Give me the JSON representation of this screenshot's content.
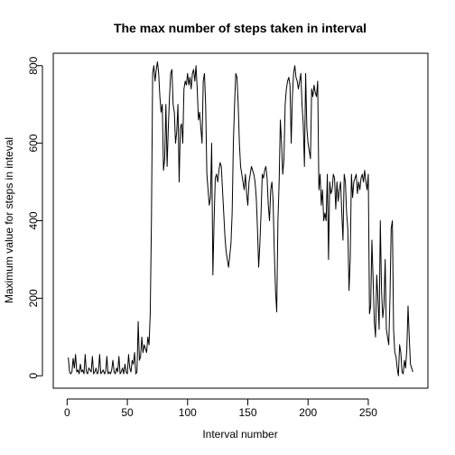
{
  "chart_data": {
    "type": "line",
    "title": "The max number of steps taken in interval",
    "xlabel": "Interval number",
    "ylabel": "Maximum value for steps in inteval",
    "xlim": [
      -11.5,
      299.5
    ],
    "ylim": [
      -32,
      832
    ],
    "xticks": [
      0,
      50,
      100,
      150,
      200,
      250
    ],
    "yticks": [
      0,
      200,
      400,
      600,
      800
    ],
    "grid": false,
    "legend": "none",
    "line_color": "#000000",
    "series": [
      {
        "values": [
          47,
          10,
          5,
          10,
          45,
          20,
          55,
          10,
          15,
          5,
          30,
          10,
          15,
          5,
          55,
          10,
          5,
          20,
          15,
          10,
          50,
          5,
          10,
          20,
          5,
          10,
          55,
          5,
          10,
          15,
          5,
          10,
          50,
          5,
          10,
          5,
          15,
          40,
          10,
          5,
          20,
          10,
          50,
          5,
          10,
          20,
          5,
          30,
          10,
          5,
          55,
          20,
          10,
          40,
          30,
          60,
          5,
          10,
          140,
          40,
          50,
          100,
          60,
          80,
          70,
          60,
          100,
          80,
          160,
          400,
          780,
          800,
          760,
          790,
          810,
          780,
          720,
          680,
          700,
          530,
          560,
          700,
          540,
          640,
          720,
          780,
          790,
          700,
          680,
          600,
          630,
          700,
          500,
          640,
          650,
          600,
          740,
          760,
          750,
          780,
          750,
          770,
          740,
          780,
          790,
          760,
          800,
          740,
          660,
          680,
          640,
          600,
          760,
          780,
          700,
          520,
          480,
          440,
          460,
          600,
          260,
          400,
          510,
          520,
          500,
          530,
          550,
          540,
          480,
          420,
          360,
          320,
          300,
          280,
          310,
          340,
          420,
          600,
          700,
          780,
          770,
          700,
          600,
          540,
          520,
          500,
          480,
          520,
          470,
          440,
          500,
          520,
          540,
          530,
          520,
          500,
          460,
          380,
          280,
          340,
          420,
          520,
          510,
          530,
          540,
          510,
          440,
          400,
          480,
          500,
          450,
          320,
          220,
          165,
          400,
          500,
          660,
          600,
          520,
          560,
          700,
          740,
          760,
          770,
          750,
          600,
          720,
          780,
          800,
          770,
          760,
          740,
          760,
          780,
          700,
          650,
          540,
          780,
          640,
          600,
          580,
          560,
          740,
          720,
          750,
          730,
          720,
          760,
          480,
          520,
          440,
          480,
          400,
          420,
          400,
          520,
          300,
          500,
          470,
          480,
          520,
          510,
          430,
          500,
          450,
          480,
          500,
          420,
          350,
          520,
          500,
          420,
          380,
          220,
          300,
          520,
          460,
          500,
          510,
          520,
          470,
          500,
          480,
          510,
          520,
          500,
          530,
          500,
          480,
          520,
          160,
          180,
          350,
          250,
          140,
          100,
          260,
          200,
          120,
          400,
          220,
          150,
          180,
          300,
          120,
          100,
          80,
          200,
          380,
          400,
          120,
          60,
          50,
          20,
          0,
          80,
          60,
          10,
          5,
          40,
          20,
          70,
          180,
          100,
          30,
          20,
          10
        ]
      }
    ],
    "x_tick_labels": [
      "0",
      "50",
      "100",
      "150",
      "200",
      "250"
    ],
    "y_tick_labels": [
      "0",
      "200",
      "400",
      "600",
      "800"
    ]
  }
}
